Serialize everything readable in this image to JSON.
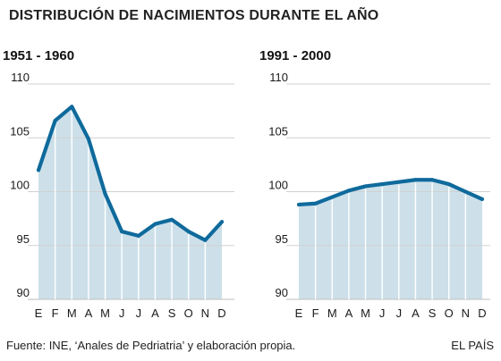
{
  "title": "DISTRIBUCIÓN DE NACIMIENTOS DURANTE EL AÑO",
  "footer": {
    "source": "Fuente: INE, ‘Anales de Pedriatria’ y elaboración propia.",
    "brand": "EL PAÍS"
  },
  "colors": {
    "line": "#0f6a9c",
    "fill": "#cde0ea",
    "gridline_light": "#d0d0d0",
    "gridline_base": "#bdbdbd",
    "text": "#1a1a1a"
  },
  "chart_data": [
    {
      "type": "area",
      "title": "1951 - 1960",
      "categories": [
        "E",
        "F",
        "M",
        "A",
        "M",
        "J",
        "J",
        "A",
        "S",
        "O",
        "N",
        "D"
      ],
      "values": [
        102.0,
        106.6,
        107.9,
        104.9,
        99.8,
        96.3,
        95.9,
        97.0,
        97.4,
        96.3,
        95.5,
        97.2
      ],
      "yticks": [
        90,
        95,
        100,
        105,
        110
      ],
      "ylim": [
        90,
        110
      ],
      "grid": true
    },
    {
      "type": "area",
      "title": "1991 - 2000",
      "categories": [
        "E",
        "F",
        "M",
        "A",
        "M",
        "J",
        "J",
        "A",
        "S",
        "O",
        "N",
        "D"
      ],
      "values": [
        98.8,
        98.9,
        99.5,
        100.1,
        100.5,
        100.7,
        100.9,
        101.1,
        101.1,
        100.7,
        100.0,
        99.3
      ],
      "yticks": [
        90,
        95,
        100,
        105,
        110
      ],
      "ylim": [
        90,
        110
      ],
      "grid": true
    }
  ]
}
